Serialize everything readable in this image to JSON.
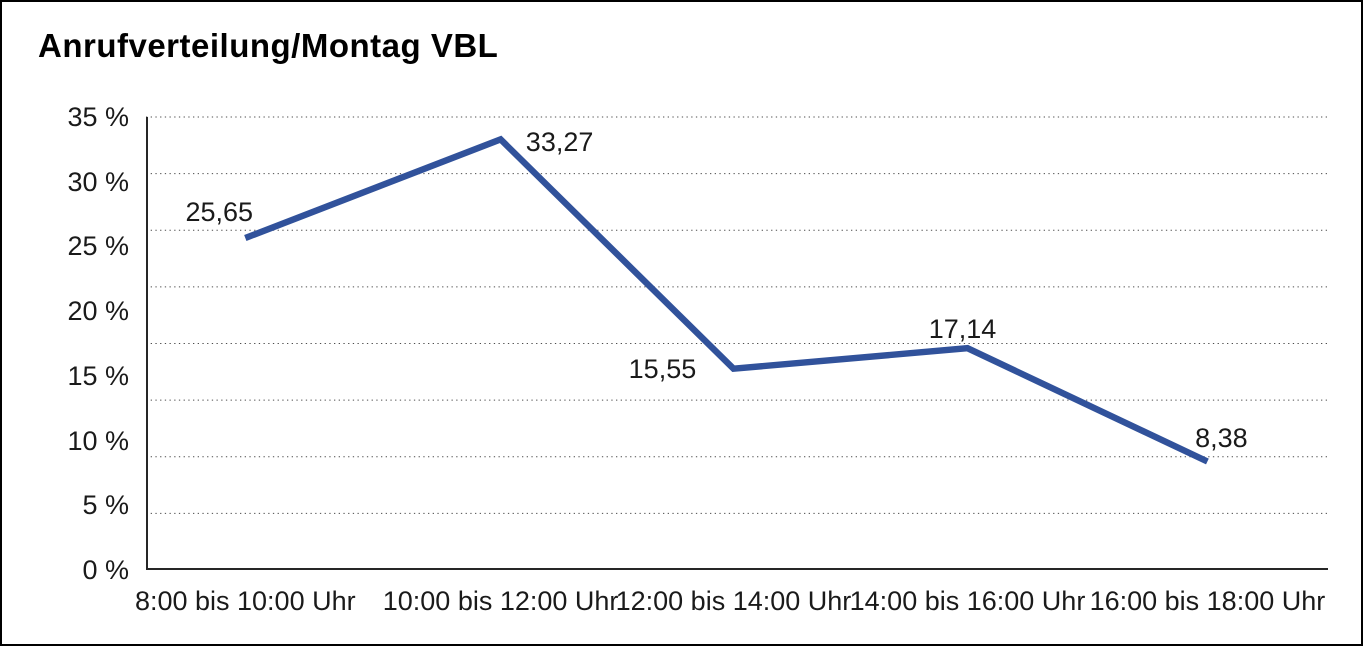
{
  "page": {
    "background": "#ffffff",
    "border_color": "#000000"
  },
  "chart_data": {
    "type": "line",
    "title": "Anrufverteilung/Montag VBL",
    "categories": [
      "8:00 bis 10:00 Uhr",
      "10:00 bis 12:00 Uhr",
      "12:00 bis 14:00 Uhr",
      "14:00 bis 16:00 Uhr",
      "16:00 bis 18:00 Uhr"
    ],
    "values": [
      25.65,
      33.27,
      15.55,
      17.14,
      8.38
    ],
    "value_labels": [
      "25,65",
      "33,27",
      "15,55",
      "17,14",
      "8,38"
    ],
    "xlabel": "",
    "ylabel": "",
    "ylim": [
      0,
      35
    ],
    "yticks": [
      "35 %",
      "30 %",
      "25 %",
      "20 %",
      "15 %",
      "10 %",
      "5 %",
      "0 %"
    ],
    "grid": "horizontal-dotted",
    "grid_divisions": 8,
    "legend": "none",
    "line_color": "#31529B",
    "axis_color": "#262626",
    "gridline_color": "#4d4d4d",
    "text_color": "#1a1a1a"
  }
}
